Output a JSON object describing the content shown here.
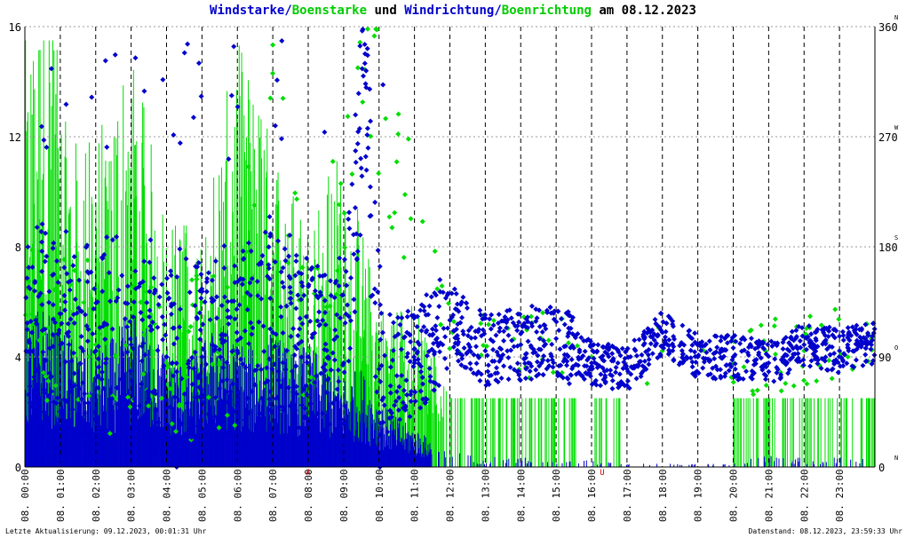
{
  "title": {
    "part1": "Windstarke/",
    "part2": "Boenstarke",
    "part3": " und ",
    "part4": "Windrichtung/",
    "part5": "Boenrichtung",
    "part6": " am 08.12.2023"
  },
  "footer": {
    "left": "Letzte Aktualisierung: 09.12.2023, 00:01:31 Uhr",
    "right": "Datenstand: 08.12.2023, 23:59:33 Uhr"
  },
  "colors": {
    "wind": "#0000cc",
    "gust": "#00dd00",
    "grid": "#999999",
    "hour_line": "#000000",
    "marker": "#cc0000"
  },
  "chart_data": {
    "type": "scatter",
    "xlabel": "",
    "ylabel": "",
    "xlim": [
      0,
      24
    ],
    "ylim_left": [
      0,
      16
    ],
    "ylim_right": [
      0,
      360
    ],
    "left_ticks": [
      "0",
      "4",
      "8",
      "12",
      "16"
    ],
    "right_ticks": [
      "0",
      "90",
      "180",
      "270",
      "360"
    ],
    "compass_labels": [
      "N",
      "O",
      "S",
      "W",
      "N"
    ],
    "x_tick_labels": [
      "08. 00:00",
      "08. 01:00",
      "08. 02:00",
      "08. 03:00",
      "08. 04:00",
      "08. 05:00",
      "08. 06:00",
      "08. 07:00",
      "08. 08:00",
      "08. 09:00",
      "08. 10:00",
      "08. 11:00",
      "08. 12:00",
      "08. 13:00",
      "08. 14:00",
      "08. 15:00",
      "08. 16:00",
      "08. 17:00",
      "08. 18:00",
      "08. 19:00",
      "08. 20:00",
      "08. 21:00",
      "08. 22:00",
      "08. 23:00"
    ],
    "markers": [
      {
        "label": "A",
        "hour": 8.0
      },
      {
        "label": "U",
        "hour": 16.3
      }
    ],
    "grid": true,
    "series": [
      {
        "name": "Windstarke",
        "kind": "bars",
        "axis": "left",
        "color": "#0000cc",
        "description_points": [
          [
            0.1,
            4.5
          ],
          [
            0.5,
            5.0
          ],
          [
            1.0,
            4.2
          ],
          [
            1.5,
            3.8
          ],
          [
            2.0,
            3.5
          ],
          [
            2.5,
            4.0
          ],
          [
            3.0,
            4.8
          ],
          [
            3.5,
            4.2
          ],
          [
            4.0,
            3.6
          ],
          [
            4.5,
            3.2
          ],
          [
            5.0,
            3.8
          ],
          [
            5.5,
            4.5
          ],
          [
            6.0,
            4.0
          ],
          [
            6.5,
            3.6
          ],
          [
            7.0,
            4.2
          ],
          [
            7.5,
            3.5
          ],
          [
            8.0,
            3.8
          ],
          [
            8.5,
            3.2
          ],
          [
            9.0,
            2.8
          ],
          [
            9.5,
            3.0
          ],
          [
            10.0,
            2.0
          ],
          [
            10.5,
            1.5
          ],
          [
            11.0,
            1.2
          ],
          [
            11.5,
            0.8
          ],
          [
            12.0,
            0.5
          ],
          [
            13.0,
            0.3
          ],
          [
            14.0,
            0.3
          ],
          [
            15.0,
            0.2
          ],
          [
            16.0,
            0.2
          ],
          [
            17.0,
            0.1
          ],
          [
            20.0,
            0.1
          ],
          [
            21.0,
            0.4
          ],
          [
            22.0,
            0.3
          ],
          [
            23.0,
            0.3
          ],
          [
            23.9,
            0.3
          ]
        ]
      },
      {
        "name": "Boenstarke",
        "kind": "bars",
        "axis": "left",
        "color": "#00dd00",
        "description_points": [
          [
            0.3,
            13.0
          ],
          [
            0.6,
            15.5
          ],
          [
            1.2,
            10.0
          ],
          [
            2.0,
            10.0
          ],
          [
            3.0,
            13.0
          ],
          [
            4.0,
            7.5
          ],
          [
            5.0,
            7.5
          ],
          [
            6.0,
            13.0
          ],
          [
            7.0,
            10.0
          ],
          [
            8.0,
            7.5
          ],
          [
            9.0,
            10.0
          ],
          [
            10.0,
            5.0
          ],
          [
            11.0,
            5.0
          ],
          [
            12.0,
            2.5
          ],
          [
            13.0,
            2.5
          ],
          [
            14.0,
            2.5
          ],
          [
            15.0,
            2.5
          ],
          [
            16.0,
            2.5
          ],
          [
            20.0,
            2.5
          ],
          [
            21.0,
            2.5
          ],
          [
            22.0,
            2.5
          ],
          [
            23.0,
            2.5
          ],
          [
            23.9,
            2.5
          ]
        ]
      },
      {
        "name": "Windrichtung",
        "kind": "scatter",
        "axis": "right",
        "color": "#0000cc",
        "description_points": [
          [
            0.2,
            110
          ],
          [
            1.0,
            100
          ],
          [
            2.0,
            95
          ],
          [
            3.0,
            100
          ],
          [
            4.0,
            90
          ],
          [
            5.0,
            90
          ],
          [
            6.0,
            95
          ],
          [
            7.0,
            110
          ],
          [
            8.0,
            90
          ],
          [
            9.0,
            85
          ],
          [
            9.6,
            330
          ],
          [
            10.0,
            80
          ],
          [
            11.0,
            85
          ],
          [
            12.0,
            120
          ],
          [
            13.0,
            95
          ],
          [
            14.0,
            100
          ],
          [
            15.0,
            105
          ],
          [
            16.0,
            85
          ],
          [
            17.0,
            80
          ],
          [
            18.0,
            110
          ],
          [
            19.0,
            90
          ],
          [
            20.0,
            90
          ],
          [
            21.0,
            85
          ],
          [
            22.0,
            100
          ],
          [
            23.0,
            95
          ],
          [
            23.9,
            100
          ]
        ]
      },
      {
        "name": "Boenrichtung",
        "kind": "scatter",
        "axis": "right",
        "color": "#00dd00",
        "description_points": [
          [
            0.2,
            125
          ],
          [
            2.0,
            100
          ],
          [
            4.0,
            85
          ],
          [
            6.0,
            100
          ],
          [
            7.0,
            345
          ],
          [
            8.0,
            95
          ],
          [
            9.6,
            325
          ],
          [
            12.0,
            120
          ],
          [
            14.0,
            100
          ],
          [
            16.0,
            90
          ],
          [
            18.0,
            95
          ],
          [
            20.0,
            85
          ],
          [
            22.0,
            95
          ],
          [
            23.9,
            105
          ]
        ]
      }
    ]
  }
}
